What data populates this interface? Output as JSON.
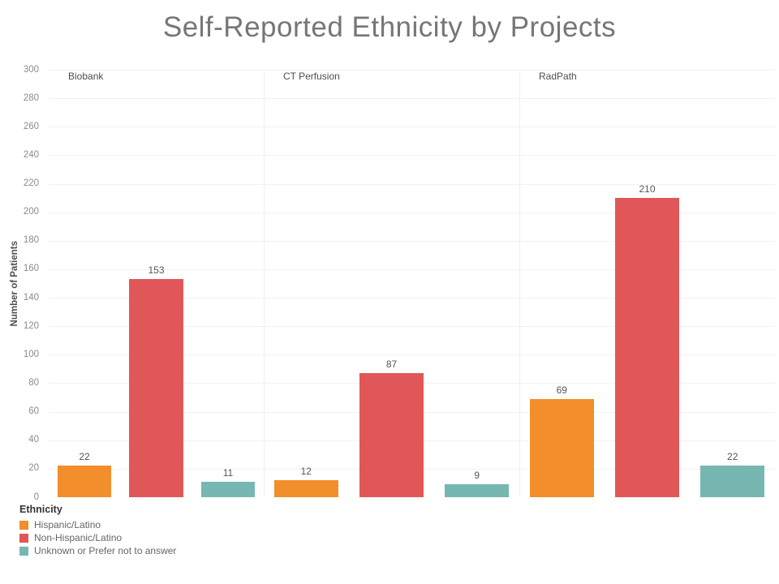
{
  "title": "Self-Reported Ethnicity by Projects",
  "y_axis": {
    "label": "Number of Patients",
    "min": 0,
    "max": 300,
    "tick_step": 20
  },
  "legend": {
    "title": "Ethnicity"
  },
  "chart_data": {
    "type": "bar",
    "title": "Self-Reported Ethnicity by Projects",
    "xlabel": "",
    "ylabel": "Number of Patients",
    "ylim": [
      0,
      300
    ],
    "tick_step": 20,
    "grid": true,
    "legend_position": "bottom-left",
    "categories": [
      "Biobank",
      "CT Perfusion",
      "RadPath"
    ],
    "series": [
      {
        "name": "Hispanic/Latino",
        "color": "#F28E2B",
        "values": [
          22,
          12,
          69
        ]
      },
      {
        "name": "Non-Hispanic/Latino",
        "color": "#E15759",
        "values": [
          153,
          87,
          210
        ]
      },
      {
        "name": "Unknown or Prefer not to answer",
        "color": "#76B7B2",
        "values": [
          11,
          9,
          22
        ]
      }
    ]
  }
}
